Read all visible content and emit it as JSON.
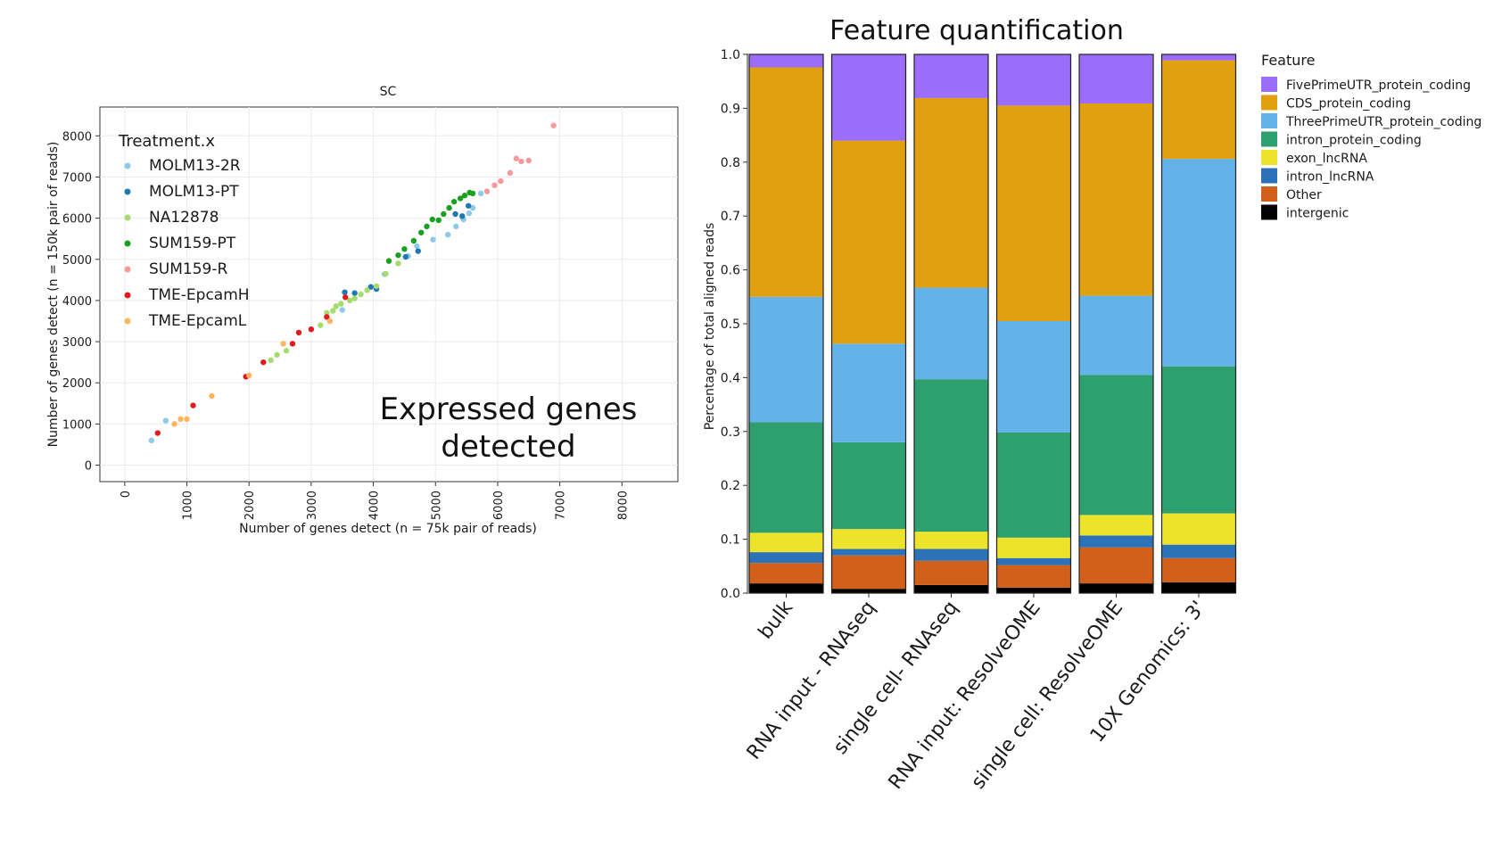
{
  "annotation": {
    "line1": "Expressed genes",
    "line2": "detected"
  },
  "chart_data": [
    {
      "type": "scatter",
      "title": "SC",
      "xlabel": "Number of genes detect (n = 75k pair of reads)",
      "ylabel": "Number of genes detect (n = 150k pair of reads)",
      "xlim": [
        -400,
        8900
      ],
      "ylim": [
        -400,
        8700
      ],
      "x_ticks": [
        "0",
        "1000",
        "2000",
        "3000",
        "4000",
        "5000",
        "6000",
        "7000",
        "8000"
      ],
      "y_ticks": [
        "0",
        "1000",
        "2000",
        "3000",
        "4000",
        "5000",
        "6000",
        "7000",
        "8000"
      ],
      "grid": true,
      "legend": {
        "title": "Treatment.x",
        "placement": "top-left"
      },
      "series": [
        {
          "name": "MOLM13-2R",
          "color": "#8fc9e8",
          "x": [
            430,
            660,
            3500,
            4180,
            4560,
            4700,
            4960,
            5200,
            5330,
            5450,
            5540,
            5600,
            5730
          ],
          "y": [
            600,
            1080,
            3770,
            4640,
            5080,
            5320,
            5480,
            5600,
            5800,
            5970,
            6120,
            6250,
            6600
          ]
        },
        {
          "name": "MOLM13-PT",
          "color": "#1f78b4",
          "x": [
            3540,
            3700,
            3960,
            4050,
            4520,
            4720,
            5320,
            5430,
            5530
          ],
          "y": [
            4200,
            4180,
            4330,
            4280,
            5060,
            5200,
            6100,
            6050,
            6300
          ]
        },
        {
          "name": "NA12878",
          "color": "#a6db6e",
          "x": [
            2350,
            2450,
            2600,
            3150,
            3250,
            3350,
            3400,
            3480,
            3620,
            3700,
            3800,
            3900,
            4050,
            4200,
            4400
          ],
          "y": [
            2550,
            2680,
            2780,
            3400,
            3700,
            3750,
            3860,
            3920,
            4000,
            4050,
            4150,
            4250,
            4350,
            4650,
            4900
          ]
        },
        {
          "name": "SUM159-PT",
          "color": "#18a020",
          "x": [
            4250,
            4400,
            4500,
            4650,
            4770,
            4860,
            4950,
            5050,
            5130,
            5220,
            5300,
            5400,
            5470,
            5550,
            5600
          ],
          "y": [
            4960,
            5100,
            5250,
            5450,
            5650,
            5800,
            5970,
            5950,
            6100,
            6250,
            6400,
            6480,
            6550,
            6620,
            6600
          ]
        },
        {
          "name": "SUM159-R",
          "color": "#f59a9a",
          "x": [
            5830,
            5950,
            6050,
            6200,
            6300,
            6380,
            6500,
            6900
          ],
          "y": [
            6650,
            6800,
            6900,
            7100,
            7450,
            7380,
            7400,
            8250
          ]
        },
        {
          "name": "TME-EpcamH",
          "color": "#e31a1c",
          "x": [
            530,
            1100,
            1950,
            2230,
            2700,
            2800,
            3000,
            3250,
            3550
          ],
          "y": [
            780,
            1450,
            2150,
            2500,
            2950,
            3220,
            3300,
            3600,
            4080
          ]
        },
        {
          "name": "TME-EpcamL",
          "color": "#fdb55e",
          "x": [
            800,
            900,
            1000,
            1400,
            2000,
            2550,
            3300
          ],
          "y": [
            1000,
            1120,
            1120,
            1680,
            2180,
            2950,
            3500
          ]
        }
      ]
    },
    {
      "type": "bar",
      "stacked": true,
      "title": "Feature quantification",
      "ylabel": "Percentage of total aligned reads",
      "ylim": [
        0,
        1.0
      ],
      "y_ticks": [
        "0.0",
        "0.1",
        "0.2",
        "0.3",
        "0.4",
        "0.5",
        "0.6",
        "0.7",
        "0.8",
        "0.9",
        "1.0"
      ],
      "categories": [
        "bulk",
        "RNA input - RNAseq",
        "single cell- RNAseq",
        "RNA input: ResolveOME",
        "single cell: ResolveOME",
        "10X Genomics: 3'"
      ],
      "legend": {
        "title": "Feature",
        "placement": "right"
      },
      "series": [
        {
          "name": "intergenic",
          "color": "#000000",
          "values": [
            0.018,
            0.008,
            0.015,
            0.01,
            0.018,
            0.02
          ]
        },
        {
          "name": "Other",
          "color": "#d2601a",
          "values": [
            0.038,
            0.062,
            0.045,
            0.042,
            0.067,
            0.045
          ]
        },
        {
          "name": "intron_lncRNA",
          "color": "#2b72b8",
          "values": [
            0.02,
            0.012,
            0.022,
            0.013,
            0.022,
            0.025
          ]
        },
        {
          "name": "exon_lncRNA",
          "color": "#ece32a",
          "values": [
            0.036,
            0.037,
            0.032,
            0.038,
            0.038,
            0.058
          ]
        },
        {
          "name": "intron_protein_coding",
          "color": "#2e9f6f",
          "values": [
            0.205,
            0.161,
            0.283,
            0.195,
            0.26,
            0.273
          ]
        },
        {
          "name": "ThreePrimeUTR_protein_coding",
          "color": "#63b3e8",
          "values": [
            0.233,
            0.183,
            0.17,
            0.207,
            0.147,
            0.385
          ]
        },
        {
          "name": "CDS_protein_coding",
          "color": "#e0a010",
          "values": [
            0.426,
            0.377,
            0.352,
            0.4,
            0.357,
            0.183
          ]
        },
        {
          "name": "FivePrimeUTR_protein_coding",
          "color": "#9b6dfa",
          "values": [
            0.024,
            0.16,
            0.081,
            0.095,
            0.091,
            0.011
          ]
        }
      ],
      "legend_order": [
        "FivePrimeUTR_protein_coding",
        "CDS_protein_coding",
        "ThreePrimeUTR_protein_coding",
        "intron_protein_coding",
        "exon_lncRNA",
        "intron_lncRNA",
        "Other",
        "intergenic"
      ]
    }
  ]
}
